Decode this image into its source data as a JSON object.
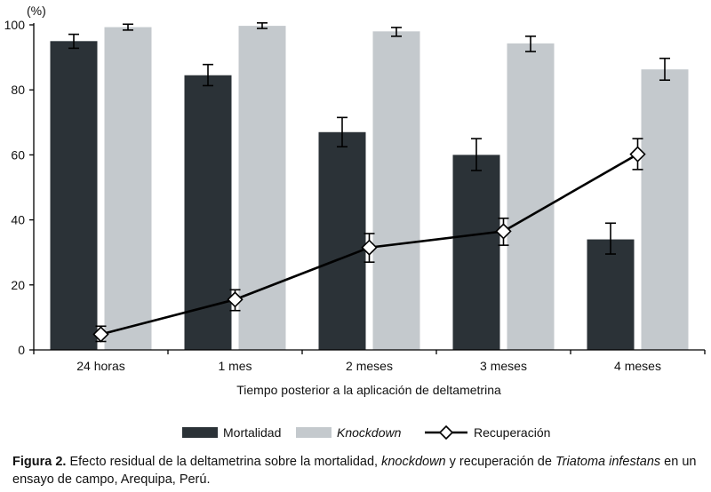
{
  "chart_data": {
    "type": "bar",
    "categories": [
      "24 horas",
      "1 mes",
      "2 meses",
      "3 meses",
      "4 meses"
    ],
    "ylabel": "(%)",
    "xlabel": "Tiempo posterior a la aplicación de deltametrina",
    "ylim": [
      0,
      100
    ],
    "yticks": [
      0,
      20,
      40,
      60,
      80,
      100
    ],
    "grid": false,
    "legend_position": "bottom",
    "series": [
      {
        "name": "Mortalidad",
        "kind": "bar",
        "color": "#2b3237",
        "values": [
          95,
          84.5,
          67,
          60,
          34
        ],
        "error_low": [
          92.8,
          81.3,
          62.5,
          55.2,
          29.5
        ],
        "error_high": [
          97.1,
          87.8,
          71.5,
          65,
          39
        ]
      },
      {
        "name": "Knockdown",
        "kind": "bar",
        "color": "#c4c9cd",
        "values": [
          99.3,
          99.7,
          98,
          94.3,
          86.3
        ],
        "error_low": [
          98.4,
          98.9,
          96.5,
          91.8,
          83
        ],
        "error_high": [
          100.2,
          100.6,
          99.2,
          96.5,
          89.7
        ]
      },
      {
        "name": "Recuperación",
        "kind": "line",
        "marker": "diamond",
        "color": "#000000",
        "values": [
          4.8,
          15.5,
          31.5,
          36.5,
          60.2
        ],
        "error_low": [
          2.6,
          12.1,
          27,
          32.2,
          55.5
        ],
        "error_high": [
          7.3,
          18.5,
          35.8,
          40.5,
          65
        ]
      }
    ]
  },
  "caption": {
    "figure_label": "Figura 2.",
    "part1": " Efecto residual de la deltametrina sobre la mortalidad, ",
    "italic1": "knockdown",
    "part2": " y recuperación de ",
    "italic2": "Triatoma infestans",
    "part3": " en un ensayo de campo, Arequipa, Perú."
  }
}
